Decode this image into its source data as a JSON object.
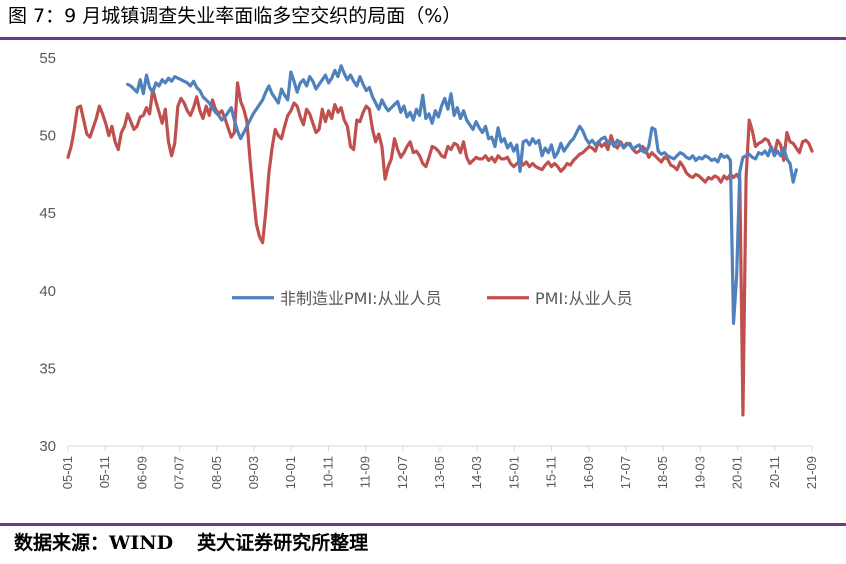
{
  "header": {
    "title": "图 7：9 月城镇调查失业率面临多空交织的局面（%）"
  },
  "footer": {
    "source_label": "数据来源：WIND",
    "source_org": "英大证券研究所整理"
  },
  "chart_data": {
    "type": "line",
    "ylim": [
      30,
      55
    ],
    "yticks": [
      30,
      35,
      40,
      45,
      50,
      55
    ],
    "x_labels": [
      "05-01",
      "05-11",
      "06-09",
      "07-07",
      "08-05",
      "09-03",
      "10-01",
      "10-11",
      "11-09",
      "12-07",
      "13-05",
      "14-03",
      "15-01",
      "15-11",
      "16-09",
      "17-07",
      "18-05",
      "19-03",
      "20-01",
      "20-11",
      "21-09"
    ],
    "legend_position": "middle",
    "grid": false,
    "colors": {
      "axis": "#d9d9d9",
      "text": "#595959"
    },
    "series": [
      {
        "name": "非制造业PMI:从业人员",
        "color": "#4f81bd",
        "start_index": 19,
        "values": [
          53.3,
          53.2,
          53.0,
          52.8,
          53.6,
          52.7,
          53.9,
          53.1,
          52.8,
          53.4,
          53.2,
          53.6,
          53.4,
          53.7,
          53.5,
          53.8,
          53.7,
          53.6,
          53.5,
          53.4,
          53.2,
          53.5,
          53.1,
          52.9,
          52.5,
          52.3,
          52.1,
          51.8,
          51.5,
          51.3,
          51.0,
          51.2,
          51.5,
          51.8,
          51.0,
          50.3,
          49.8,
          50.2,
          50.6,
          51.0,
          51.4,
          51.7,
          52.0,
          52.3,
          52.8,
          53.2,
          52.7,
          52.4,
          52.1,
          53.0,
          52.6,
          52.3,
          54.1,
          53.5,
          52.8,
          53.4,
          53.6,
          53.2,
          53.8,
          53.5,
          53.0,
          53.3,
          53.6,
          53.9,
          53.4,
          53.7,
          54.2,
          53.8,
          54.5,
          54.0,
          53.6,
          53.9,
          53.5,
          53.2,
          53.8,
          53.3,
          52.9,
          53.1,
          52.5,
          52.1,
          51.7,
          52.3,
          51.9,
          51.6,
          51.8,
          52.0,
          52.2,
          51.5,
          51.9,
          51.2,
          51.5,
          51.0,
          51.7,
          51.3,
          52.6,
          51.1,
          51.4,
          50.8,
          51.6,
          51.2,
          51.9,
          52.4,
          51.7,
          52.7,
          51.3,
          51.8,
          51.1,
          51.6,
          51.0,
          50.7,
          50.4,
          50.9,
          50.5,
          50.2,
          50.6,
          49.8,
          49.9,
          49.3,
          50.5,
          49.6,
          49.8,
          49.2,
          49.5,
          49.0,
          49.4,
          47.7,
          49.6,
          49.7,
          49.4,
          49.8,
          49.5,
          49.7,
          48.7,
          49.2,
          48.9,
          49.4,
          48.6,
          48.9,
          49.5,
          49.0,
          49.3,
          49.6,
          49.8,
          50.2,
          50.6,
          50.3,
          49.8,
          49.5,
          49.7,
          49.4,
          49.6,
          49.8,
          49.9,
          49.5,
          49.6,
          49.3,
          49.7,
          49.5,
          49.2,
          49.4,
          49.5,
          49.1,
          49.3,
          49.4,
          49.0,
          48.9,
          49.3,
          50.5,
          50.4,
          49.0,
          48.8,
          48.9,
          48.7,
          48.6,
          48.5,
          48.7,
          48.9,
          48.8,
          48.6,
          48.5,
          48.7,
          48.4,
          48.6,
          48.5,
          48.7,
          48.6,
          48.4,
          48.5,
          48.3,
          48.8,
          48.6,
          48.7,
          48.4,
          37.9,
          41.0,
          47.7,
          48.6,
          48.7,
          48.8,
          48.6,
          48.5,
          48.9,
          48.8,
          49.0,
          48.7,
          49.3,
          48.7,
          49.0,
          48.7,
          49.2,
          48.5,
          48.2,
          47.0,
          47.8
        ]
      },
      {
        "name": "PMI:从业人员",
        "color": "#c0504d",
        "start_index": 0,
        "values": [
          48.6,
          49.3,
          50.4,
          51.8,
          51.9,
          51.0,
          50.1,
          49.9,
          50.5,
          51.1,
          51.9,
          51.4,
          50.8,
          50.0,
          50.6,
          49.6,
          49.1,
          50.2,
          50.6,
          51.4,
          50.9,
          50.4,
          50.6,
          51.2,
          51.3,
          51.8,
          51.4,
          53.0,
          52.2,
          51.5,
          50.8,
          51.7,
          49.6,
          48.7,
          49.5,
          51.9,
          52.4,
          52.1,
          51.6,
          51.3,
          51.8,
          52.5,
          51.6,
          51.1,
          51.9,
          51.3,
          52.3,
          51.7,
          51.4,
          51.6,
          51.1,
          50.5,
          49.9,
          50.2,
          53.4,
          52.2,
          51.7,
          50.9,
          48.4,
          46.3,
          44.3,
          43.5,
          43.1,
          45.1,
          47.6,
          49.2,
          50.4,
          50.0,
          49.8,
          50.6,
          51.3,
          51.6,
          52.1,
          51.9,
          51.2,
          50.7,
          51.7,
          51.4,
          50.8,
          50.2,
          50.4,
          51.7,
          50.9,
          51.6,
          51.1,
          52.0,
          51.5,
          51.8,
          51.0,
          50.6,
          49.3,
          49.1,
          51.0,
          50.9,
          51.5,
          51.9,
          51.7,
          50.4,
          49.6,
          50.1,
          49.3,
          47.2,
          48.0,
          48.5,
          49.8,
          49.1,
          48.6,
          48.9,
          49.3,
          49.6,
          48.9,
          49.0,
          48.7,
          48.2,
          48.0,
          48.6,
          49.3,
          49.2,
          49.0,
          48.7,
          48.6,
          49.3,
          49.1,
          49.5,
          49.4,
          48.9,
          49.6,
          48.6,
          48.2,
          48.4,
          48.6,
          48.5,
          48.5,
          48.7,
          48.4,
          48.6,
          48.3,
          48.7,
          48.5,
          48.5,
          48.6,
          48.2,
          48.0,
          48.2,
          48.4,
          48.1,
          48.3,
          48.0,
          48.2,
          48.0,
          47.9,
          47.8,
          48.1,
          48.3,
          48.0,
          48.2,
          48.0,
          47.7,
          47.9,
          48.2,
          48.1,
          48.4,
          48.6,
          48.8,
          48.9,
          49.1,
          49.3,
          49.2,
          49.0,
          49.6,
          49.3,
          49.5,
          49.1,
          50.0,
          49.4,
          49.2,
          49.6,
          49.3,
          49.5,
          49.4,
          49.1,
          48.9,
          49.0,
          49.3,
          49.1,
          48.6,
          48.9,
          48.7,
          48.5,
          48.3,
          48.6,
          48.5,
          48.1,
          48.0,
          47.8,
          48.3,
          48.0,
          47.6,
          47.4,
          47.3,
          47.5,
          47.4,
          47.2,
          47.0,
          47.3,
          47.2,
          47.4,
          47.3,
          47.0,
          47.4,
          47.2,
          47.5,
          47.3,
          47.5,
          47.2,
          32.0,
          47.3,
          51.0,
          50.3,
          49.3,
          49.5,
          49.6,
          49.8,
          49.7,
          49.2,
          48.8,
          49.7,
          49.4,
          48.4,
          50.2,
          49.6,
          49.5,
          49.2,
          48.9,
          49.6,
          49.7,
          49.5,
          49.0
        ]
      }
    ]
  }
}
